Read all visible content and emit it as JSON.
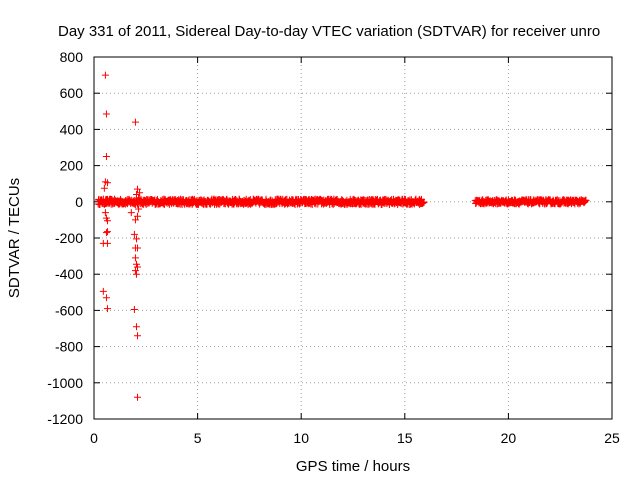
{
  "chart_data": {
    "type": "scatter",
    "title": "Day 331 of 2011, Sidereal Day-to-day VTEC variation (SDTVAR) for receiver unro",
    "xlabel": "GPS time / hours",
    "ylabel": "SDTVAR / TECUs",
    "xlim": [
      0,
      25
    ],
    "ylim": [
      -1200,
      800
    ],
    "xticks": [
      0,
      5,
      10,
      15,
      20,
      25
    ],
    "yticks": [
      -1200,
      -1000,
      -800,
      -600,
      -400,
      -200,
      0,
      200,
      400,
      600,
      800
    ],
    "grid": true,
    "marker": "+",
    "series_color": "#ff0000",
    "dense_bands": [
      {
        "x_start": 0.2,
        "x_end": 15.95,
        "y_min": -15,
        "y_max": 15
      },
      {
        "x_start": 18.4,
        "x_end": 23.75,
        "y_min": -12,
        "y_max": 12
      }
    ],
    "outliers": [
      {
        "x": 0.55,
        "y": 700
      },
      {
        "x": 0.6,
        "y": 485
      },
      {
        "x": 0.6,
        "y": 250
      },
      {
        "x": 0.55,
        "y": 110
      },
      {
        "x": 0.65,
        "y": 105
      },
      {
        "x": 0.5,
        "y": 75
      },
      {
        "x": 0.55,
        "y": -60
      },
      {
        "x": 0.6,
        "y": -90
      },
      {
        "x": 0.65,
        "y": -105
      },
      {
        "x": 0.6,
        "y": -170
      },
      {
        "x": 0.65,
        "y": -165
      },
      {
        "x": 0.45,
        "y": -230
      },
      {
        "x": 0.65,
        "y": -230
      },
      {
        "x": 0.45,
        "y": -495
      },
      {
        "x": 0.6,
        "y": -530
      },
      {
        "x": 0.65,
        "y": -590
      },
      {
        "x": 2.0,
        "y": 440
      },
      {
        "x": 2.1,
        "y": 70
      },
      {
        "x": 2.2,
        "y": 50
      },
      {
        "x": 2.05,
        "y": 40
      },
      {
        "x": 2.15,
        "y": 20
      },
      {
        "x": 1.8,
        "y": -60
      },
      {
        "x": 2.1,
        "y": -80
      },
      {
        "x": 2.0,
        "y": -100
      },
      {
        "x": 2.15,
        "y": -40
      },
      {
        "x": 1.95,
        "y": -180
      },
      {
        "x": 2.05,
        "y": -205
      },
      {
        "x": 2.0,
        "y": -255
      },
      {
        "x": 2.1,
        "y": -255
      },
      {
        "x": 2.0,
        "y": -310
      },
      {
        "x": 2.05,
        "y": -345
      },
      {
        "x": 2.1,
        "y": -360
      },
      {
        "x": 2.0,
        "y": -380
      },
      {
        "x": 2.05,
        "y": -400
      },
      {
        "x": 1.95,
        "y": -595
      },
      {
        "x": 2.05,
        "y": -690
      },
      {
        "x": 2.1,
        "y": -740
      },
      {
        "x": 2.1,
        "y": -1080
      }
    ]
  }
}
